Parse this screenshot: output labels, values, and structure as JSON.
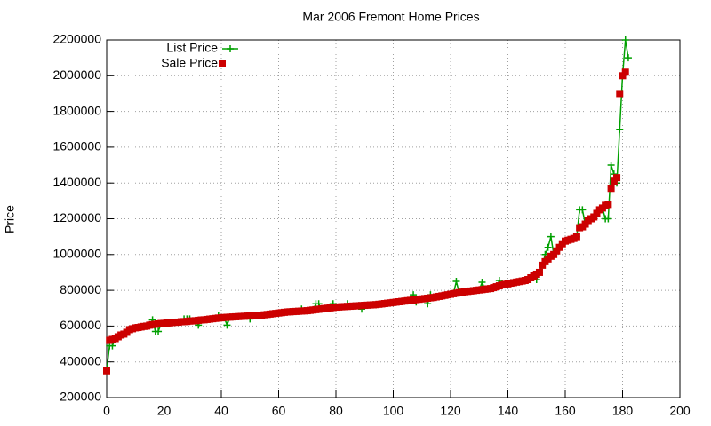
{
  "chart_data": {
    "type": "line",
    "title": "Mar 2006 Fremont Home Prices",
    "y_label": "Price",
    "xlim": [
      0,
      200
    ],
    "xticks": [
      0,
      20,
      40,
      60,
      80,
      100,
      120,
      140,
      160,
      180,
      200
    ],
    "ylim": [
      200000,
      2200000
    ],
    "yticks": [
      200000,
      400000,
      600000,
      800000,
      1000000,
      1200000,
      1400000,
      1600000,
      1800000,
      2000000,
      2200000
    ],
    "grid": true,
    "legend": "top-left",
    "x": [
      0,
      1,
      2,
      3,
      4,
      5,
      6,
      7,
      8,
      9,
      10,
      11,
      12,
      13,
      14,
      15,
      16,
      17,
      18,
      19,
      20,
      21,
      22,
      23,
      24,
      25,
      26,
      27,
      28,
      29,
      30,
      31,
      32,
      33,
      34,
      35,
      36,
      37,
      38,
      39,
      40,
      41,
      42,
      43,
      44,
      45,
      46,
      47,
      48,
      49,
      50,
      51,
      52,
      53,
      54,
      55,
      56,
      57,
      58,
      59,
      60,
      61,
      62,
      63,
      64,
      65,
      66,
      67,
      68,
      69,
      70,
      71,
      72,
      73,
      74,
      75,
      76,
      77,
      78,
      79,
      80,
      81,
      82,
      83,
      84,
      85,
      86,
      87,
      88,
      89,
      90,
      91,
      92,
      93,
      94,
      95,
      96,
      97,
      98,
      99,
      100,
      101,
      102,
      103,
      104,
      105,
      106,
      107,
      108,
      109,
      110,
      111,
      112,
      113,
      114,
      115,
      116,
      117,
      118,
      119,
      120,
      121,
      122,
      123,
      124,
      125,
      126,
      127,
      128,
      129,
      130,
      131,
      132,
      133,
      134,
      135,
      136,
      137,
      138,
      139,
      140,
      141,
      142,
      143,
      144,
      145,
      146,
      147,
      148,
      149,
      150,
      151,
      152,
      153,
      154,
      155,
      156,
      157,
      158,
      159,
      160,
      161,
      162,
      163,
      164,
      165,
      166,
      167,
      168,
      169,
      170,
      171,
      172,
      173,
      174,
      175,
      176,
      177,
      178,
      179,
      180,
      181,
      182
    ],
    "series": [
      {
        "name": "List Price",
        "color": "#00a000",
        "style": "linespoints",
        "values": [
          350000,
          490000,
          490000,
          530000,
          540000,
          550000,
          555000,
          565000,
          580000,
          585000,
          590000,
          592000,
          595000,
          598000,
          600000,
          605000,
          635000,
          570000,
          570000,
          614000,
          615000,
          617000,
          618000,
          620000,
          621000,
          622000,
          624000,
          640000,
          640000,
          640000,
          629000,
          630000,
          605000,
          634000,
          635000,
          637000,
          639000,
          641000,
          643000,
          660000,
          646000,
          648000,
          605000,
          650000,
          651000,
          652000,
          653000,
          654000,
          655000,
          656000,
          640000,
          658000,
          659000,
          660000,
          661000,
          663000,
          665000,
          667000,
          669000,
          671000,
          673000,
          675000,
          677000,
          679000,
          680000,
          681000,
          682000,
          683000,
          695000,
          685000,
          686000,
          688000,
          690000,
          725000,
          725000,
          696000,
          698000,
          700000,
          702000,
          725000,
          706000,
          707000,
          708000,
          709000,
          725000,
          711000,
          712000,
          713000,
          714000,
          695000,
          716000,
          717000,
          718000,
          719000,
          720000,
          722000,
          724000,
          726000,
          728000,
          730000,
          732000,
          734000,
          736000,
          738000,
          740000,
          742000,
          744000,
          775000,
          735000,
          750000,
          752000,
          754000,
          725000,
          775000,
          760000,
          763000,
          766000,
          769000,
          772000,
          775000,
          778000,
          781000,
          850000,
          787000,
          790000,
          792000,
          794000,
          796000,
          798000,
          800000,
          802000,
          845000,
          806000,
          808000,
          810000,
          815000,
          820000,
          855000,
          830000,
          833000,
          836000,
          840000,
          843000,
          846000,
          849000,
          852000,
          855000,
          860000,
          870000,
          880000,
          860000,
          900000,
          940000,
          1000000,
          1040000,
          1100000,
          1000000,
          1020000,
          1040000,
          1060000,
          1075000,
          1080000,
          1085000,
          1090000,
          1100000,
          1250000,
          1250000,
          1170000,
          1190000,
          1200000,
          1210000,
          1230000,
          1250000,
          1260000,
          1200000,
          1200000,
          1500000,
          1450000,
          1400000,
          1700000,
          2000000,
          2200000,
          2100000
        ]
      },
      {
        "name": "Sale Price",
        "color": "#cc0000",
        "style": "points",
        "values": [
          350000,
          520000,
          525000,
          530000,
          540000,
          550000,
          555000,
          565000,
          580000,
          585000,
          590000,
          592000,
          595000,
          598000,
          600000,
          605000,
          608000,
          610000,
          612000,
          614000,
          615000,
          617000,
          618000,
          620000,
          621000,
          622000,
          624000,
          625000,
          626000,
          628000,
          629000,
          630000,
          632000,
          634000,
          635000,
          637000,
          639000,
          641000,
          643000,
          645000,
          646000,
          648000,
          649000,
          650000,
          651000,
          652000,
          653000,
          654000,
          655000,
          656000,
          657000,
          658000,
          659000,
          660000,
          661000,
          663000,
          665000,
          667000,
          669000,
          671000,
          673000,
          675000,
          677000,
          679000,
          680000,
          681000,
          682000,
          683000,
          684000,
          685000,
          686000,
          688000,
          690000,
          692000,
          694000,
          696000,
          698000,
          700000,
          702000,
          704000,
          706000,
          707000,
          708000,
          709000,
          710000,
          711000,
          712000,
          713000,
          714000,
          715000,
          716000,
          717000,
          718000,
          719000,
          720000,
          722000,
          724000,
          726000,
          728000,
          730000,
          732000,
          734000,
          736000,
          738000,
          740000,
          742000,
          744000,
          746000,
          748000,
          750000,
          752000,
          754000,
          756000,
          758000,
          760000,
          763000,
          766000,
          769000,
          772000,
          775000,
          778000,
          781000,
          784000,
          787000,
          790000,
          792000,
          794000,
          796000,
          798000,
          800000,
          802000,
          804000,
          806000,
          808000,
          810000,
          815000,
          820000,
          825000,
          830000,
          833000,
          836000,
          840000,
          843000,
          846000,
          849000,
          852000,
          855000,
          860000,
          870000,
          880000,
          890000,
          900000,
          940000,
          960000,
          975000,
          990000,
          1000000,
          1020000,
          1040000,
          1060000,
          1075000,
          1080000,
          1085000,
          1090000,
          1100000,
          1150000,
          1155000,
          1170000,
          1190000,
          1200000,
          1210000,
          1230000,
          1250000,
          1260000,
          1275000,
          1280000,
          1370000,
          1410000,
          1430000,
          1900000,
          2000000,
          2020000,
          null
        ]
      }
    ]
  }
}
